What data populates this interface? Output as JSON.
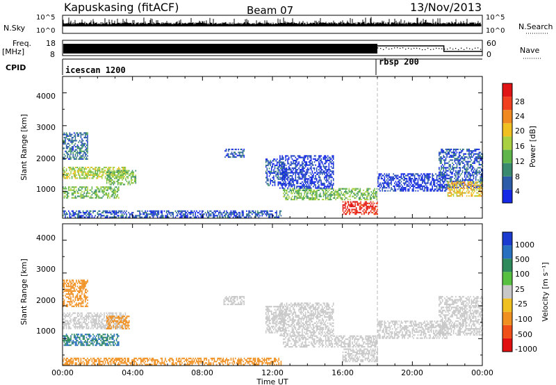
{
  "header": {
    "station": "Kapuskasing (fitACF)",
    "beam": "Beam 07",
    "date": "13/Nov/2013"
  },
  "strip": {
    "nsky_label": "N.Sky",
    "nsky_ticks": [
      "10^5",
      "10^0"
    ],
    "nsearch_label": "N.Search",
    "nsearch_ticks": [
      "10^5",
      "10^0"
    ],
    "freq_label_1": "Freq.",
    "freq_label_2": "[MHz]",
    "freq_ticks": [
      "18",
      "8"
    ],
    "nave_label": "Nave",
    "nave_ticks": [
      "60",
      "0"
    ],
    "cpid_label": "CPID",
    "cpid_segments": [
      {
        "name": "icescan 1200",
        "start_hour": 0,
        "end_hour": 18
      },
      {
        "name": "rbsp 200",
        "start_hour": 18,
        "end_hour": 24
      }
    ]
  },
  "x_axis": {
    "label": "Time UT",
    "range_hours": [
      0,
      24
    ],
    "tick_labels": [
      "00:00",
      "04:00",
      "08:00",
      "12:00",
      "16:00",
      "20:00",
      "00:00"
    ]
  },
  "power_panel": {
    "ylabel": "Slant Range [km]",
    "y_ticks": [
      "1000",
      "2000",
      "3000",
      "4000"
    ],
    "colorbar_label": "Power [dB]",
    "colorbar_ticks": [
      "4",
      "8",
      "12",
      "16",
      "20",
      "24",
      "28"
    ],
    "colors": [
      "#1428e6",
      "#2c5ca8",
      "#3a8a70",
      "#5fb44a",
      "#a8d040",
      "#f0c020",
      "#f08a20",
      "#f04020",
      "#e01414"
    ]
  },
  "velocity_panel": {
    "ylabel": "Slant Range [km]",
    "y_ticks": [
      "1000",
      "2000",
      "3000",
      "4000"
    ],
    "colorbar_label": "Velocity [m s⁻¹]",
    "colorbar_ticks": [
      "1000",
      "500",
      "100",
      "25",
      "-25",
      "-100",
      "-500",
      "-1000"
    ],
    "colors": [
      "#1a3ad0",
      "#2a70c0",
      "#2e8a5a",
      "#58c040",
      "#c8c8c8",
      "#f0c020",
      "#f09020",
      "#f05018",
      "#e01010"
    ]
  },
  "chart_data": {
    "type": "heatmap",
    "x_unit": "hours UT",
    "y_unit": "slant range km",
    "y_range": [
      180,
      4500
    ],
    "x_range": [
      0,
      24
    ],
    "power_blobs": [
      {
        "t0": 0.0,
        "t1": 3.6,
        "r0": 1400,
        "r1": 1750,
        "value_db": 16
      },
      {
        "t0": 0.0,
        "t1": 3.2,
        "r0": 800,
        "r1": 1150,
        "value_db": 14
      },
      {
        "t0": 0.0,
        "t1": 1.4,
        "r0": 2000,
        "r1": 2800,
        "value_db": 8
      },
      {
        "t0": 2.5,
        "t1": 4.2,
        "r0": 1200,
        "r1": 1650,
        "value_db": 14
      },
      {
        "t0": 0.0,
        "t1": 12.5,
        "r0": 200,
        "r1": 420,
        "value_db": 6
      },
      {
        "t0": 9.2,
        "t1": 10.4,
        "r0": 2050,
        "r1": 2300,
        "value_db": 6
      },
      {
        "t0": 11.6,
        "t1": 12.8,
        "r0": 1200,
        "r1": 2000,
        "value_db": 6
      },
      {
        "t0": 12.6,
        "t1": 18.0,
        "r0": 750,
        "r1": 1100,
        "value_db": 14
      },
      {
        "t0": 12.4,
        "t1": 15.5,
        "r0": 1100,
        "r1": 2100,
        "value_db": 4
      },
      {
        "t0": 16.0,
        "t1": 18.0,
        "r0": 300,
        "r1": 700,
        "value_db": 28
      },
      {
        "t0": 18.0,
        "t1": 22.0,
        "r0": 1000,
        "r1": 1550,
        "value_db": 4
      },
      {
        "t0": 21.5,
        "t1": 24.0,
        "r0": 1100,
        "r1": 2300,
        "value_db": 6
      },
      {
        "t0": 22.0,
        "t1": 24.0,
        "r0": 850,
        "r1": 1300,
        "value_db": 20
      }
    ],
    "velocity_blobs": [
      {
        "t0": 0.0,
        "t1": 3.6,
        "r0": 1300,
        "r1": 1800,
        "value_ms": 0
      },
      {
        "t0": 0.0,
        "t1": 3.2,
        "r0": 800,
        "r1": 1150,
        "value_ms": 100
      },
      {
        "t0": 2.5,
        "t1": 3.8,
        "r0": 1300,
        "r1": 1700,
        "value_ms": -100
      },
      {
        "t0": 0.0,
        "t1": 1.4,
        "r0": 2000,
        "r1": 2800,
        "value_ms": -100
      },
      {
        "t0": 0.0,
        "t1": 12.5,
        "r0": 200,
        "r1": 420,
        "value_ms": -100
      },
      {
        "t0": 9.2,
        "t1": 10.4,
        "r0": 2050,
        "r1": 2300,
        "value_ms": 0
      },
      {
        "t0": 11.6,
        "t1": 12.8,
        "r0": 1200,
        "r1": 2000,
        "value_ms": 0
      },
      {
        "t0": 12.6,
        "t1": 18.0,
        "r0": 750,
        "r1": 1100,
        "value_ms": 0
      },
      {
        "t0": 12.4,
        "t1": 15.5,
        "r0": 1100,
        "r1": 2100,
        "value_ms": 0
      },
      {
        "t0": 16.0,
        "t1": 18.0,
        "r0": 300,
        "r1": 700,
        "value_ms": 0
      },
      {
        "t0": 18.0,
        "t1": 22.0,
        "r0": 1000,
        "r1": 1550,
        "value_ms": 0
      },
      {
        "t0": 21.5,
        "t1": 24.0,
        "r0": 1100,
        "r1": 2300,
        "value_ms": 0
      }
    ]
  }
}
